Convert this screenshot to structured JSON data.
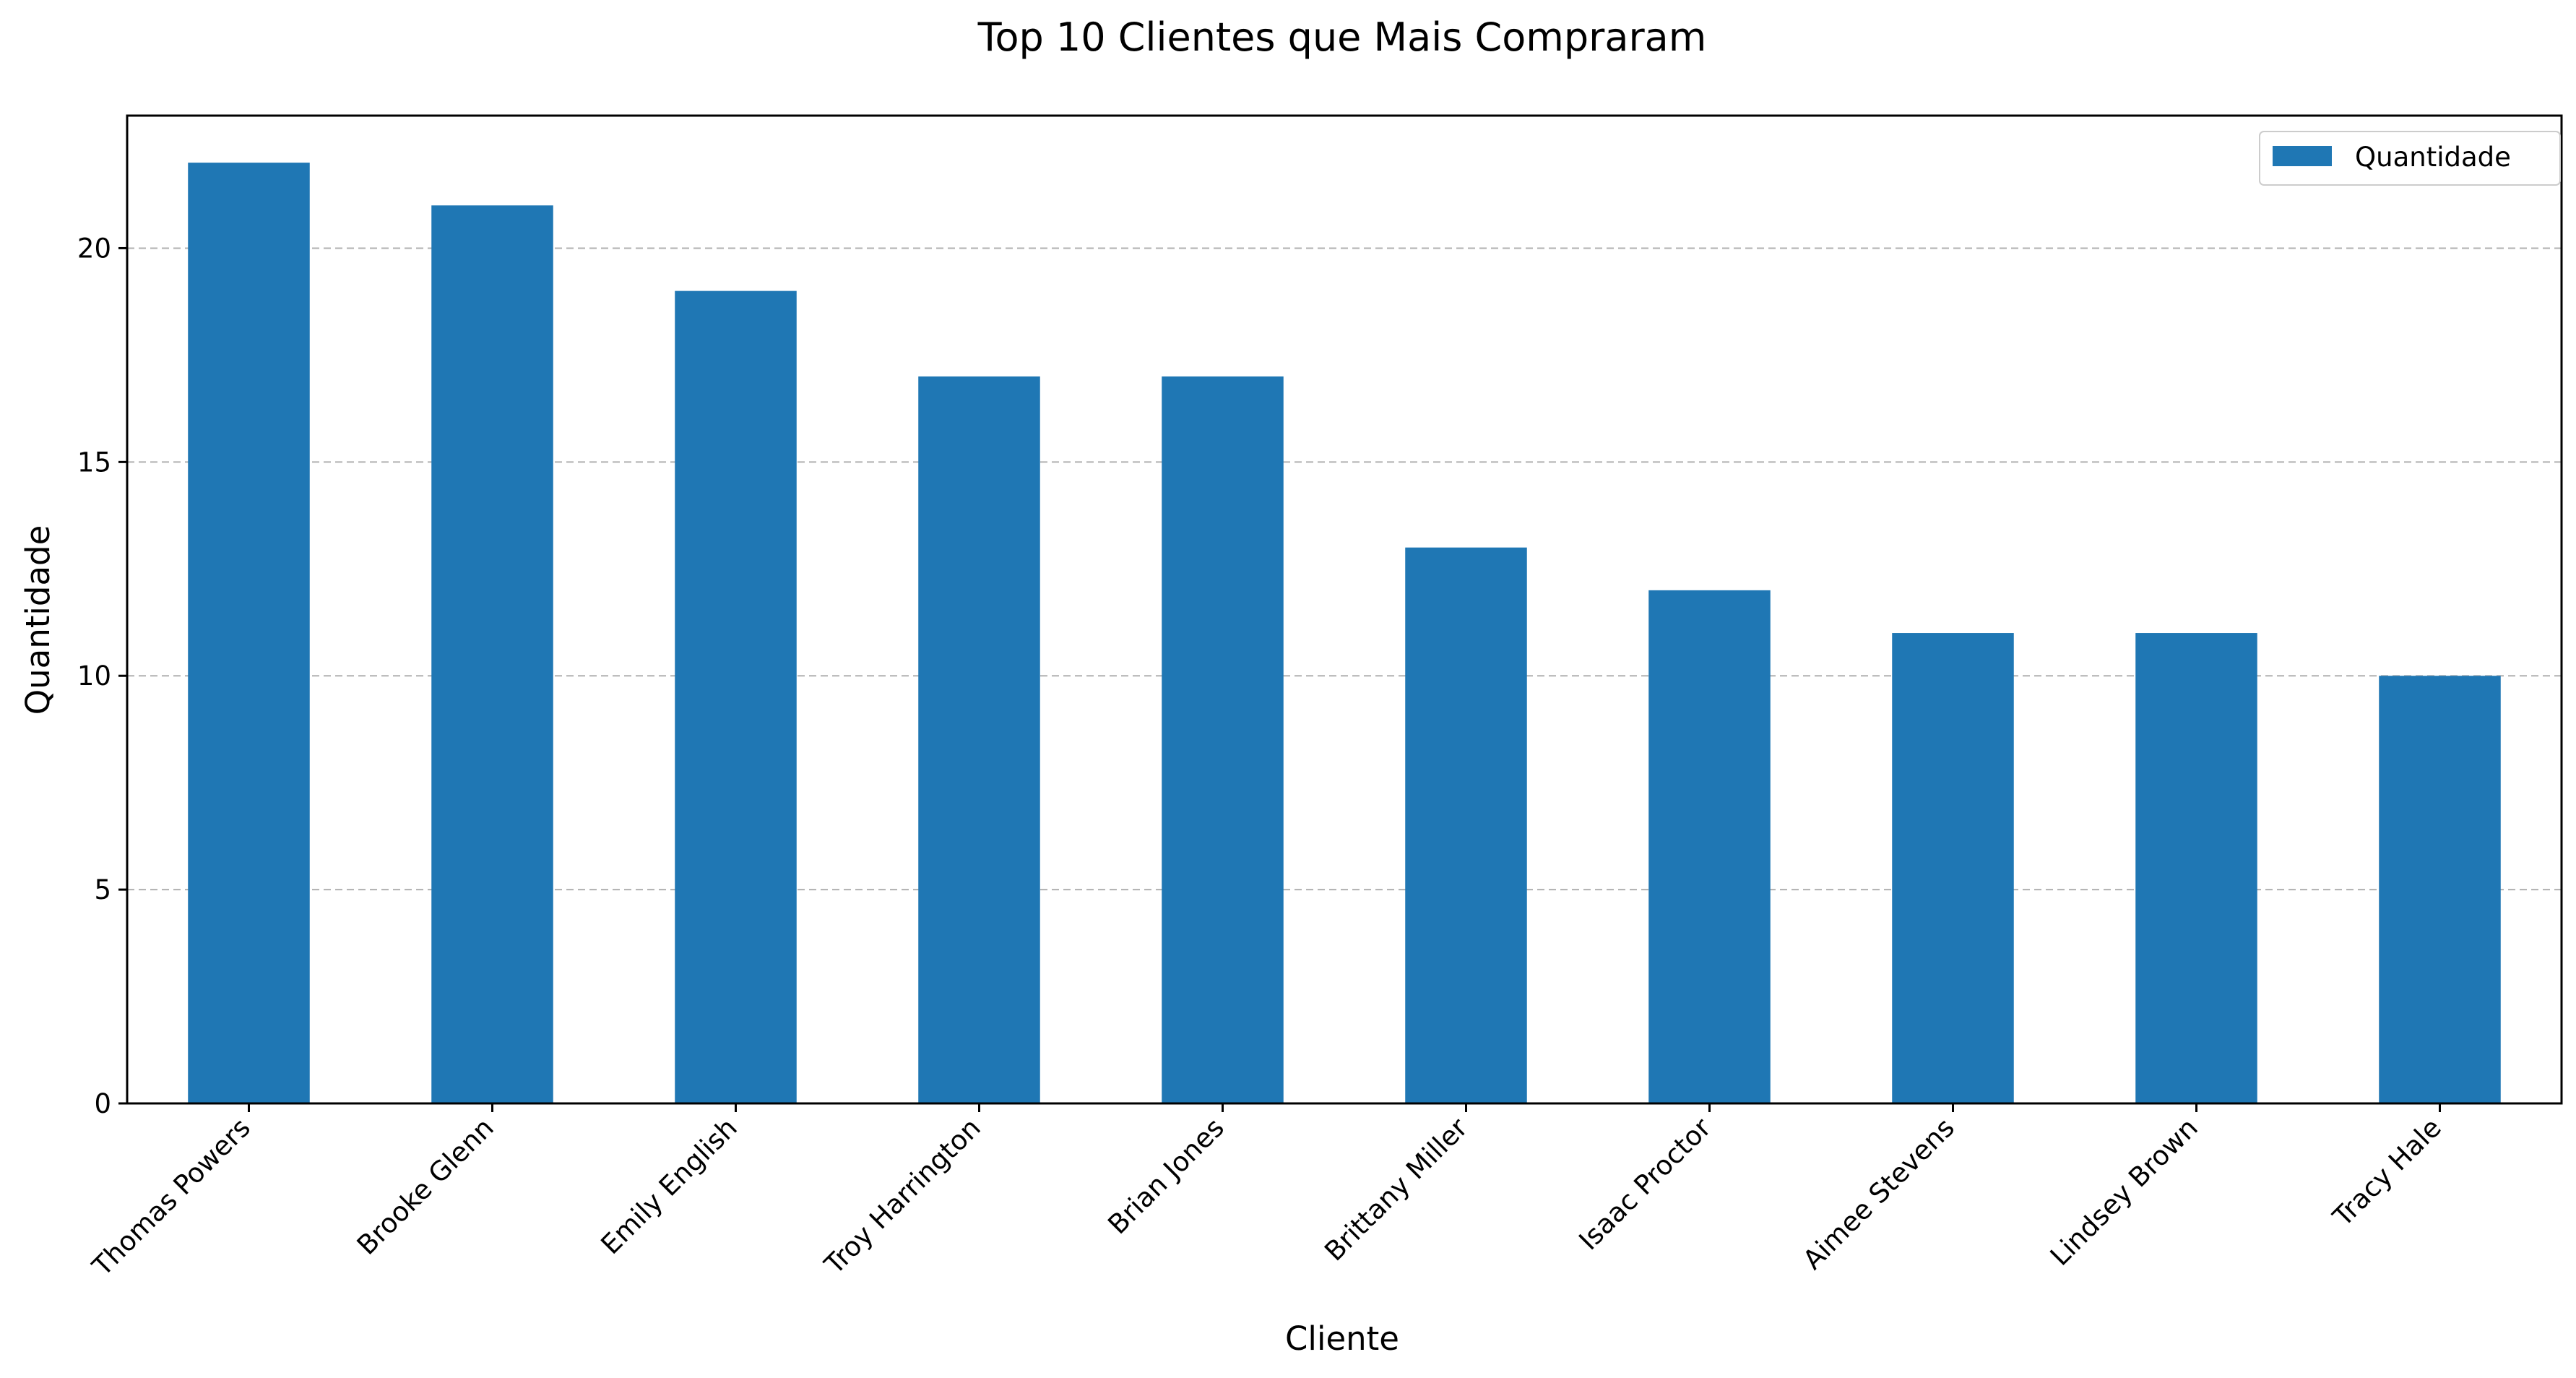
{
  "chart_data": {
    "type": "bar",
    "title": "Top 10 Clientes que Mais Compraram",
    "xlabel": "Cliente",
    "ylabel": "Quantidade",
    "categories": [
      "Thomas Powers",
      "Brooke Glenn",
      "Emily English",
      "Troy Harrington",
      "Brian Jones",
      "Brittany Miller",
      "Isaac Proctor",
      "Aimee Stevens",
      "Lindsey Brown",
      "Tracy Hale"
    ],
    "series": [
      {
        "name": "Quantidade",
        "values": [
          22,
          21,
          19,
          17,
          17,
          13,
          12,
          11,
          11,
          10
        ],
        "color": "#1f77b4"
      }
    ],
    "ylim": [
      0,
      23.1
    ],
    "yticks": [
      0,
      5,
      10,
      15,
      20
    ],
    "grid": "y-dashed",
    "legend_position": "top-right"
  }
}
